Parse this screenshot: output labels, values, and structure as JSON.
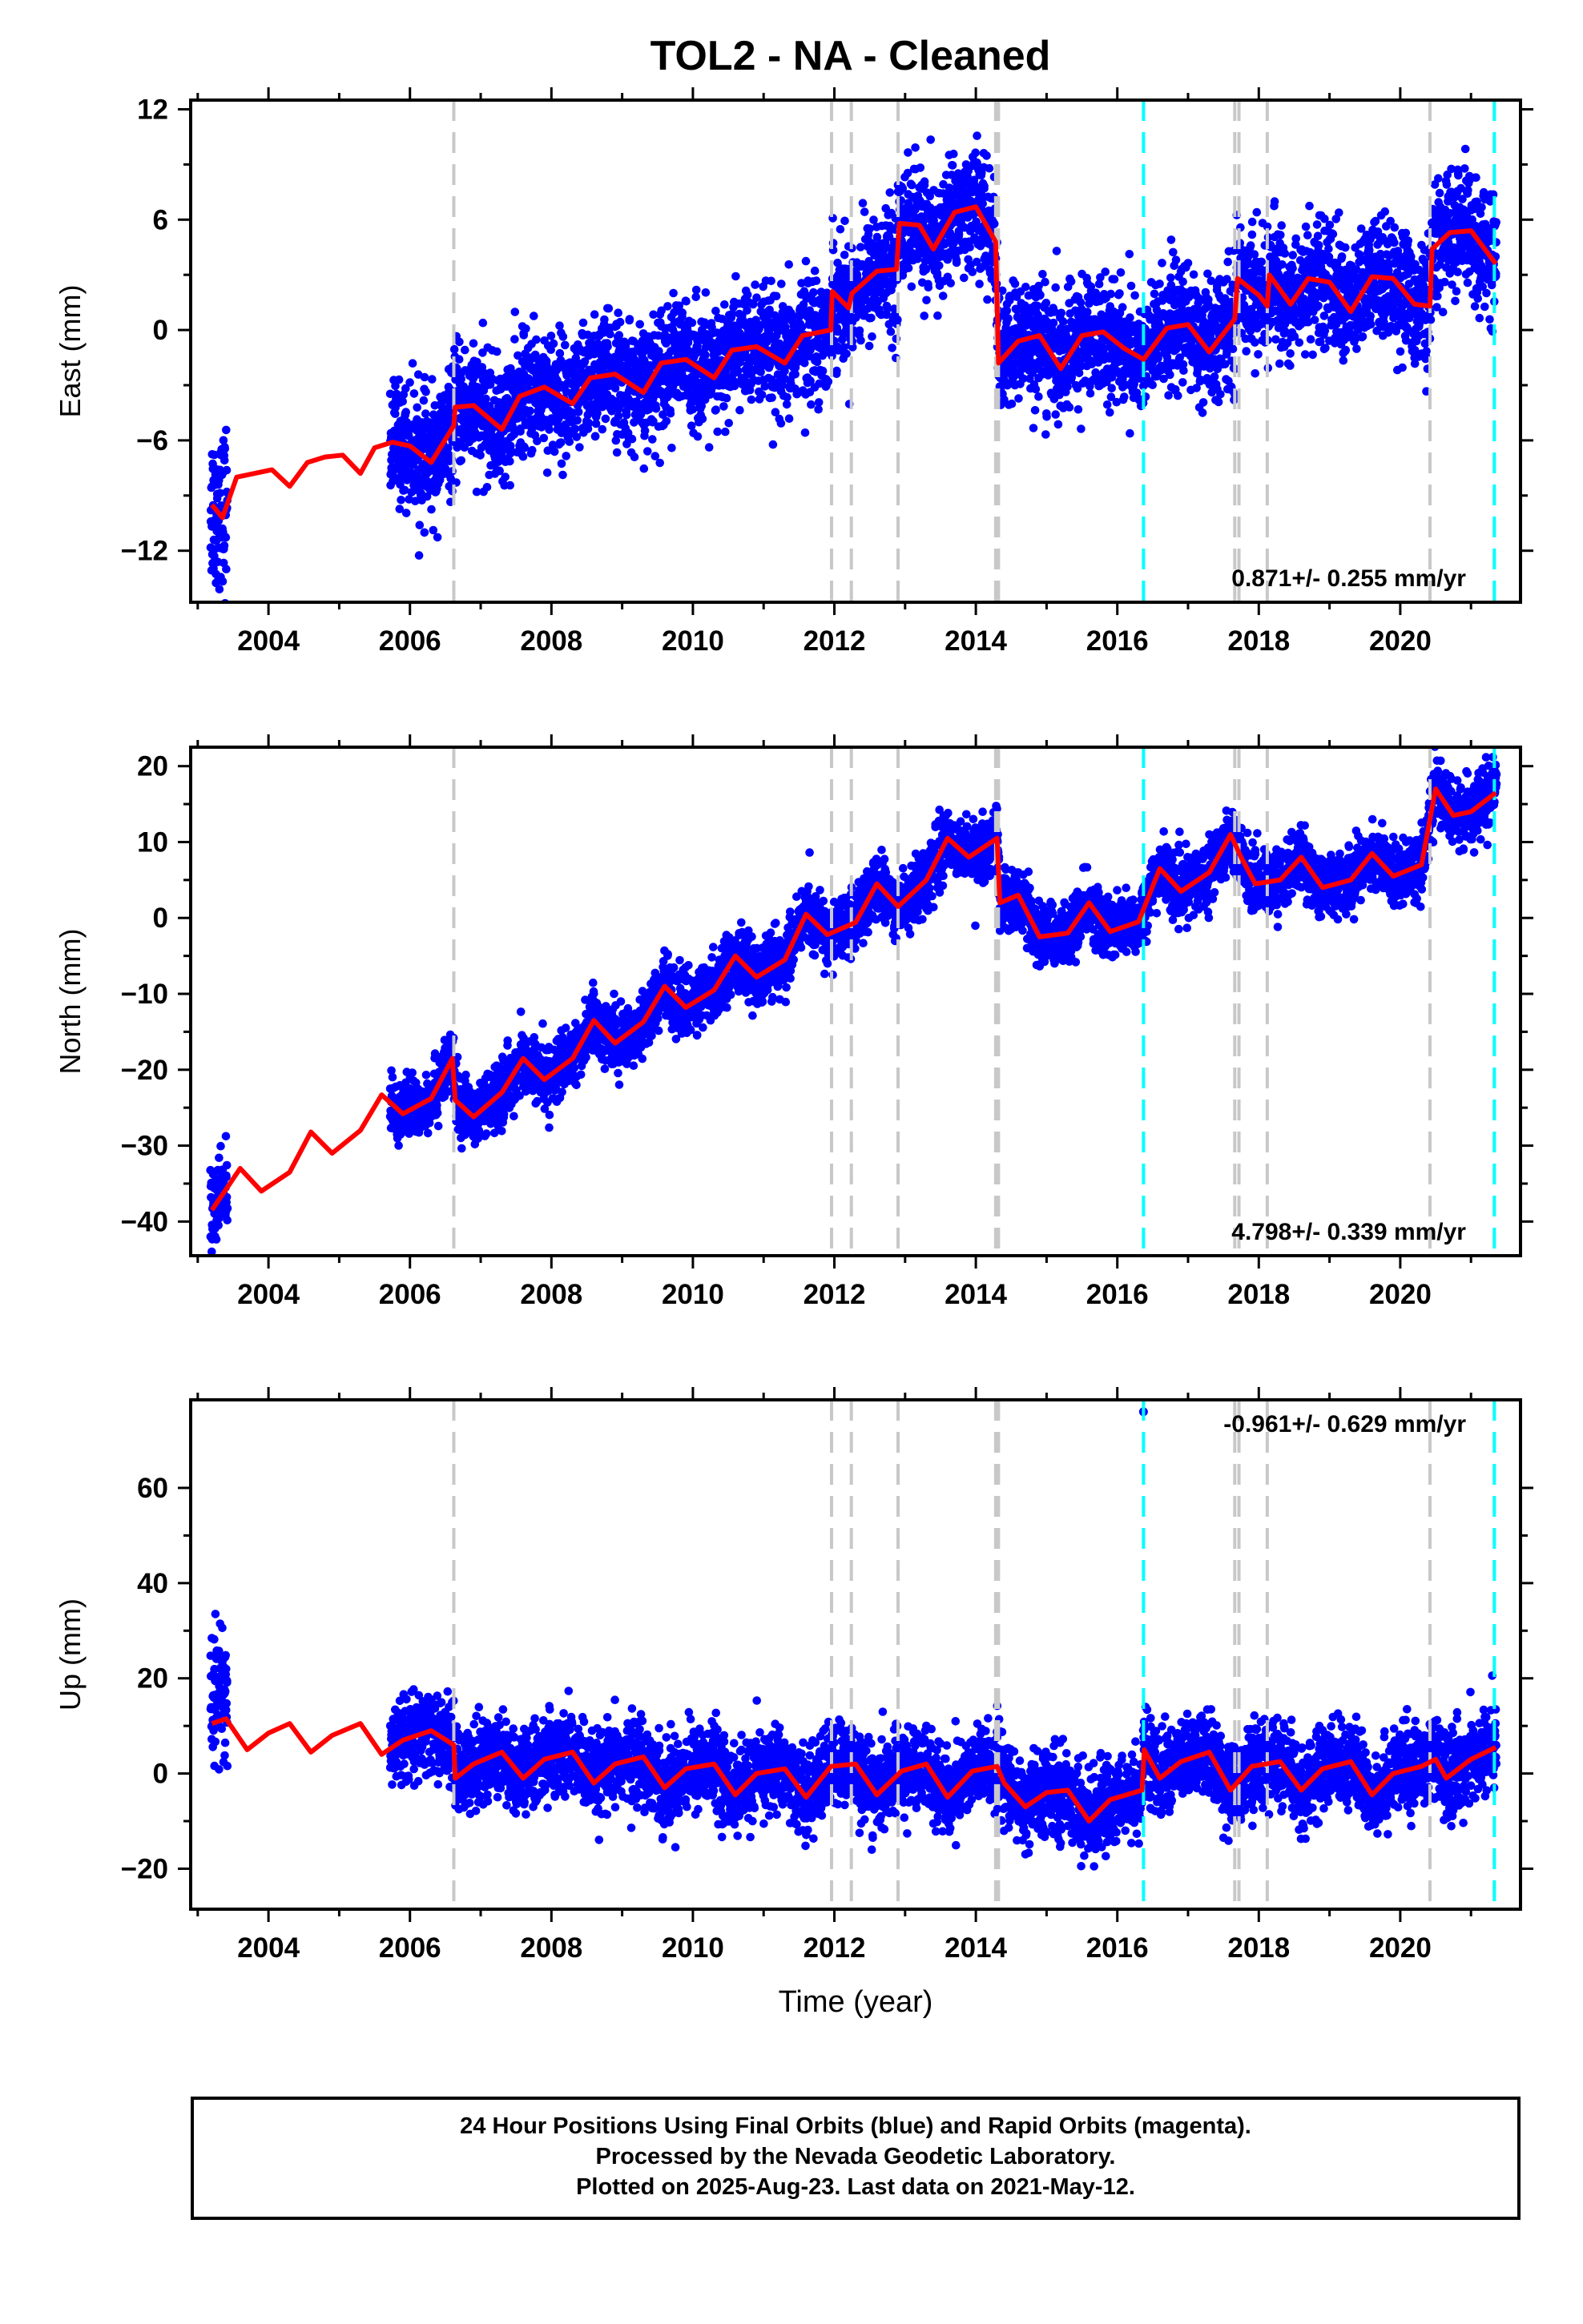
{
  "title": "TOL2  - NA - Cleaned",
  "colors": {
    "data_points": "#0000ff",
    "model_line": "#ff0000",
    "antenna_change_lines": "#c8c8c8",
    "event_lines": "#00ffff"
  },
  "chart_data": [
    {
      "type": "scatter",
      "ylabel": "East (mm)",
      "xlabel": "",
      "xlim": [
        2002.9,
        2021.7
      ],
      "ylim": [
        -14.8,
        12.5
      ],
      "xticks": [
        2004,
        2006,
        2008,
        2010,
        2012,
        2014,
        2016,
        2018,
        2020
      ],
      "yticks": [
        -12,
        -6,
        0,
        6,
        12
      ],
      "velocity_label": "0.871+/- 0.255 mm/yr",
      "velocity_label_position": "bottom-right",
      "gray_event_lines": [
        2006.62,
        2011.96,
        2012.24,
        2012.9,
        2014.28,
        2014.32,
        2017.66,
        2017.72,
        2018.12,
        2020.42
      ],
      "cyan_event_lines": [
        2016.37,
        2021.33
      ],
      "model_line": [
        [
          2003.2,
          -9.5
        ],
        [
          2003.35,
          -10.2
        ],
        [
          2003.55,
          -8.0
        ],
        [
          2003.8,
          -7.8
        ],
        [
          2004.05,
          -7.6
        ],
        [
          2004.3,
          -8.5
        ],
        [
          2004.55,
          -7.2
        ],
        [
          2004.8,
          -6.9
        ],
        [
          2005.05,
          -6.8
        ],
        [
          2005.3,
          -7.8
        ],
        [
          2005.5,
          -6.4
        ],
        [
          2005.75,
          -6.1
        ],
        [
          2006.0,
          -6.3
        ],
        [
          2006.3,
          -7.2
        ],
        [
          2006.62,
          -5.2
        ],
        [
          2006.64,
          -4.2
        ],
        [
          2006.9,
          -4.1
        ],
        [
          2007.3,
          -5.4
        ],
        [
          2007.55,
          -3.6
        ],
        [
          2007.9,
          -3.1
        ],
        [
          2008.3,
          -4.0
        ],
        [
          2008.55,
          -2.6
        ],
        [
          2008.9,
          -2.4
        ],
        [
          2009.3,
          -3.4
        ],
        [
          2009.55,
          -1.8
        ],
        [
          2009.9,
          -1.6
        ],
        [
          2010.3,
          -2.6
        ],
        [
          2010.55,
          -1.1
        ],
        [
          2010.9,
          -0.9
        ],
        [
          2011.3,
          -1.8
        ],
        [
          2011.55,
          -0.3
        ],
        [
          2011.95,
          0.0
        ],
        [
          2011.97,
          2.1
        ],
        [
          2012.2,
          1.2
        ],
        [
          2012.25,
          2.0
        ],
        [
          2012.6,
          3.2
        ],
        [
          2012.88,
          3.3
        ],
        [
          2012.92,
          5.8
        ],
        [
          2013.2,
          5.7
        ],
        [
          2013.4,
          4.4
        ],
        [
          2013.7,
          6.4
        ],
        [
          2014.0,
          6.7
        ],
        [
          2014.28,
          4.8
        ],
        [
          2014.32,
          -1.8
        ],
        [
          2014.6,
          -0.6
        ],
        [
          2014.9,
          -0.3
        ],
        [
          2015.2,
          -2.1
        ],
        [
          2015.5,
          -0.3
        ],
        [
          2015.8,
          -0.1
        ],
        [
          2016.1,
          -1.0
        ],
        [
          2016.37,
          -1.6
        ],
        [
          2016.7,
          0.1
        ],
        [
          2017.0,
          0.3
        ],
        [
          2017.3,
          -1.2
        ],
        [
          2017.66,
          0.6
        ],
        [
          2017.7,
          2.8
        ],
        [
          2018.0,
          1.9
        ],
        [
          2018.12,
          1.3
        ],
        [
          2018.15,
          3.0
        ],
        [
          2018.45,
          1.4
        ],
        [
          2018.7,
          2.8
        ],
        [
          2019.0,
          2.6
        ],
        [
          2019.3,
          1.0
        ],
        [
          2019.6,
          2.9
        ],
        [
          2019.9,
          2.8
        ],
        [
          2020.2,
          1.4
        ],
        [
          2020.42,
          1.3
        ],
        [
          2020.45,
          4.4
        ],
        [
          2020.7,
          5.3
        ],
        [
          2021.0,
          5.4
        ],
        [
          2021.35,
          3.6
        ]
      ]
    },
    {
      "type": "scatter",
      "ylabel": "North (mm)",
      "xlabel": "",
      "xlim": [
        2002.9,
        2021.7
      ],
      "ylim": [
        -44.5,
        22.5
      ],
      "xticks": [
        2004,
        2006,
        2008,
        2010,
        2012,
        2014,
        2016,
        2018,
        2020
      ],
      "yticks": [
        -40,
        -30,
        -20,
        -10,
        0,
        10,
        20
      ],
      "velocity_label": "4.798+/- 0.339 mm/yr",
      "velocity_label_position": "bottom-right",
      "gray_event_lines": [
        2006.62,
        2011.96,
        2012.24,
        2012.9,
        2014.28,
        2014.32,
        2017.66,
        2017.72,
        2018.12,
        2020.42
      ],
      "cyan_event_lines": [
        2016.37,
        2021.33
      ],
      "model_line": [
        [
          2003.2,
          -38.5
        ],
        [
          2003.6,
          -33.0
        ],
        [
          2003.9,
          -36.0
        ],
        [
          2004.3,
          -33.5
        ],
        [
          2004.6,
          -28.2
        ],
        [
          2004.9,
          -31.0
        ],
        [
          2005.3,
          -28.0
        ],
        [
          2005.6,
          -23.3
        ],
        [
          2005.9,
          -25.8
        ],
        [
          2006.3,
          -23.8
        ],
        [
          2006.6,
          -18.5
        ],
        [
          2006.64,
          -24.0
        ],
        [
          2006.9,
          -26.2
        ],
        [
          2007.3,
          -23.0
        ],
        [
          2007.6,
          -18.5
        ],
        [
          2007.9,
          -21.3
        ],
        [
          2008.3,
          -18.5
        ],
        [
          2008.6,
          -13.5
        ],
        [
          2008.9,
          -16.5
        ],
        [
          2009.3,
          -13.7
        ],
        [
          2009.6,
          -9.0
        ],
        [
          2009.9,
          -11.8
        ],
        [
          2010.3,
          -9.5
        ],
        [
          2010.6,
          -5.0
        ],
        [
          2010.9,
          -7.8
        ],
        [
          2011.3,
          -5.5
        ],
        [
          2011.6,
          0.5
        ],
        [
          2011.9,
          -2.2
        ],
        [
          2012.3,
          -0.6
        ],
        [
          2012.6,
          4.5
        ],
        [
          2012.9,
          1.5
        ],
        [
          2013.3,
          5.0
        ],
        [
          2013.6,
          10.5
        ],
        [
          2013.9,
          8.0
        ],
        [
          2014.3,
          10.5
        ],
        [
          2014.34,
          2.0
        ],
        [
          2014.6,
          3.0
        ],
        [
          2014.9,
          -2.5
        ],
        [
          2015.3,
          -2.0
        ],
        [
          2015.6,
          2.0
        ],
        [
          2015.9,
          -1.8
        ],
        [
          2016.3,
          -0.5
        ],
        [
          2016.6,
          6.5
        ],
        [
          2016.9,
          3.5
        ],
        [
          2017.3,
          6.0
        ],
        [
          2017.6,
          11.0
        ],
        [
          2017.75,
          8.0
        ],
        [
          2017.95,
          4.5
        ],
        [
          2018.3,
          5.0
        ],
        [
          2018.6,
          8.0
        ],
        [
          2018.9,
          4.0
        ],
        [
          2019.3,
          5.0
        ],
        [
          2019.6,
          8.5
        ],
        [
          2019.9,
          5.5
        ],
        [
          2020.3,
          7.0
        ],
        [
          2020.5,
          17.0
        ],
        [
          2020.75,
          13.5
        ],
        [
          2021.0,
          14.0
        ],
        [
          2021.35,
          16.5
        ]
      ]
    },
    {
      "type": "scatter",
      "ylabel": "Up (mm)",
      "xlabel": "Time (year)",
      "xlim": [
        2002.9,
        2021.7
      ],
      "ylim": [
        -28.5,
        78.5
      ],
      "xticks": [
        2004,
        2006,
        2008,
        2010,
        2012,
        2014,
        2016,
        2018,
        2020
      ],
      "yticks": [
        -20,
        0,
        20,
        40,
        60
      ],
      "velocity_label": "-0.961+/- 0.629 mm/yr",
      "velocity_label_position": "top-right",
      "gray_event_lines": [
        2006.62,
        2011.96,
        2012.24,
        2012.9,
        2014.28,
        2014.32,
        2017.66,
        2017.72,
        2018.12,
        2020.42
      ],
      "cyan_event_lines": [
        2016.37,
        2021.33
      ],
      "outlier_point": [
        2016.37,
        76
      ],
      "model_line": [
        [
          2003.2,
          10.5
        ],
        [
          2003.4,
          11.5
        ],
        [
          2003.7,
          5.0
        ],
        [
          2004.0,
          8.5
        ],
        [
          2004.3,
          10.5
        ],
        [
          2004.6,
          4.5
        ],
        [
          2004.9,
          8.0
        ],
        [
          2005.3,
          10.5
        ],
        [
          2005.6,
          4.0
        ],
        [
          2005.9,
          7.0
        ],
        [
          2006.3,
          9.0
        ],
        [
          2006.62,
          6.0
        ],
        [
          2006.64,
          -1.0
        ],
        [
          2006.9,
          2.0
        ],
        [
          2007.3,
          4.5
        ],
        [
          2007.6,
          -1.0
        ],
        [
          2007.9,
          3.0
        ],
        [
          2008.3,
          4.5
        ],
        [
          2008.6,
          -2.0
        ],
        [
          2008.9,
          2.0
        ],
        [
          2009.3,
          3.5
        ],
        [
          2009.6,
          -3.0
        ],
        [
          2009.9,
          1.0
        ],
        [
          2010.3,
          2.0
        ],
        [
          2010.6,
          -4.5
        ],
        [
          2010.9,
          0.0
        ],
        [
          2011.3,
          1.0
        ],
        [
          2011.6,
          -5.0
        ],
        [
          2011.95,
          1.5
        ],
        [
          2012.3,
          2.0
        ],
        [
          2012.6,
          -4.5
        ],
        [
          2012.95,
          0.5
        ],
        [
          2013.3,
          2.0
        ],
        [
          2013.6,
          -5.0
        ],
        [
          2013.95,
          0.5
        ],
        [
          2014.3,
          1.5
        ],
        [
          2014.4,
          -2.0
        ],
        [
          2014.7,
          -7.0
        ],
        [
          2015.0,
          -4.0
        ],
        [
          2015.3,
          -3.5
        ],
        [
          2015.6,
          -10.0
        ],
        [
          2015.9,
          -5.5
        ],
        [
          2016.35,
          -3.5
        ],
        [
          2016.38,
          5.0
        ],
        [
          2016.6,
          -1.0
        ],
        [
          2016.9,
          2.5
        ],
        [
          2017.3,
          4.5
        ],
        [
          2017.6,
          -3.5
        ],
        [
          2017.9,
          1.5
        ],
        [
          2018.3,
          2.5
        ],
        [
          2018.6,
          -3.5
        ],
        [
          2018.9,
          1.0
        ],
        [
          2019.3,
          2.5
        ],
        [
          2019.6,
          -4.5
        ],
        [
          2019.9,
          0.0
        ],
        [
          2020.3,
          1.5
        ],
        [
          2020.5,
          3.0
        ],
        [
          2020.65,
          -1.0
        ],
        [
          2021.0,
          3.0
        ],
        [
          2021.35,
          5.5
        ]
      ]
    }
  ],
  "footer": {
    "line1": "24 Hour Positions Using Final Orbits (blue) and Rapid Orbits (magenta).",
    "line2": "Processed by the Nevada Geodetic Laboratory.",
    "line3": "Plotted on 2025-Aug-23. Last data on 2021-May-12."
  }
}
